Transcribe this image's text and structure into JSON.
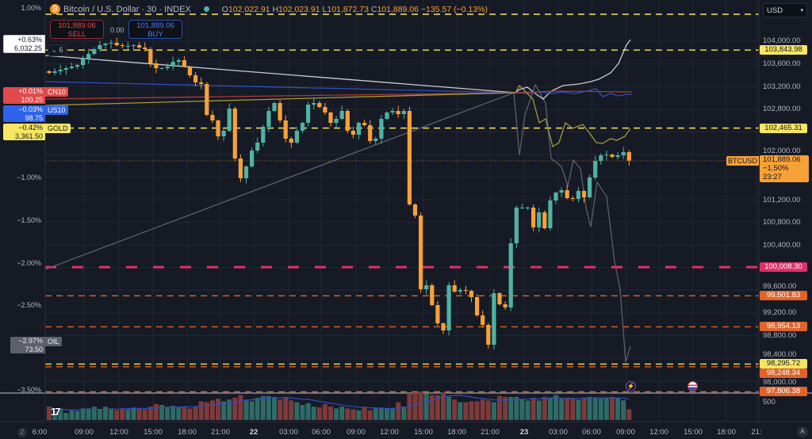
{
  "header": {
    "title": "Bitcoin / U.S. Dollar · 30 · INDEX",
    "ohlc": {
      "o_label": "O",
      "o": "102,022.91",
      "h_label": "H",
      "h": "102,023.91",
      "l_label": "L",
      "l": "101,872.73",
      "c_label": "C",
      "c": "101,889.06",
      "change": "−135.57 (−0.13%)"
    },
    "sell": {
      "price": "101,889.06",
      "label": "SELL"
    },
    "spread": "0.00",
    "buy": {
      "price": "101,889.06",
      "label": "BUY"
    },
    "collapse_count": "6"
  },
  "currency_select": "USD",
  "comparisons": [
    {
      "symbol": "",
      "pct": "+0.63%",
      "value": "6,032.25",
      "color": "#ffffff"
    },
    {
      "symbol": "CN10",
      "pct": "+0.01%",
      "value": "100.25",
      "color": "#e04a4a"
    },
    {
      "symbol": "US10",
      "pct": "−0.03%",
      "value": "98.75",
      "color": "#2e62e8"
    },
    {
      "symbol": "GOLD",
      "pct": "−0.42%",
      "value": "3,361.50",
      "color": "#f5e663"
    },
    {
      "symbol": "OIL",
      "pct": "−2.97%",
      "value": "73.50",
      "color": "#6b6e78"
    }
  ],
  "percent_axis": [
    "1.00%",
    "−1.00%",
    "−1.50%",
    "−2.00%",
    "−2.50%",
    "−3.50%"
  ],
  "price_axis": [
    "104,000.00",
    "103,600.00",
    "103,200.00",
    "102,800.00",
    "102,000.00",
    "101,200.00",
    "100,800.00",
    "100,400.00",
    "99,600.00",
    "99,200.00",
    "98,800.00",
    "98,400.00",
    "98,000.00"
  ],
  "price_lines": [
    {
      "price": "103,843.98",
      "color": "#f5e663",
      "style": "dashed"
    },
    {
      "price": "102,465.31",
      "color": "#f5e663",
      "style": "dashed"
    },
    {
      "price": "100,008.30",
      "color": "#e0306a",
      "style": "dashed-thick"
    },
    {
      "price": "99,501.83",
      "color": "#e0642a",
      "style": "dashed"
    },
    {
      "price": "98,954.13",
      "color": "#e0642a",
      "style": "dashed"
    },
    {
      "price": "98,295.72",
      "color": "#f5e663",
      "style": "dashed"
    },
    {
      "price": "98,248.34",
      "color": "#e0642a",
      "style": "dashed"
    },
    {
      "price": "97,806.38",
      "color": "#e0642a",
      "style": "dashed"
    }
  ],
  "last_price": {
    "symbol": "BTCUSD",
    "price": "101,889.06",
    "change": "−1.50%",
    "countdown": "23:27",
    "color": "#f7a136"
  },
  "volume_axis": "500",
  "time_axis": [
    "6:00",
    "09:00",
    "12:00",
    "15:00",
    "18:00",
    "21:00",
    "22",
    "03:00",
    "06:00",
    "09:00",
    "12:00",
    "15:00",
    "18:00",
    "21:00",
    "23",
    "03:00",
    "06:00",
    "09:00",
    "12:00",
    "15:00",
    "18:00",
    "21:"
  ],
  "footer": {
    "left_button": "Z",
    "right_button": "A"
  },
  "colors": {
    "up": "#4fb3a4",
    "down": "#f7a136",
    "vol_up": "#2e6b66",
    "vol_down": "#7e3a3a",
    "background": "#161a25"
  },
  "chart_data": {
    "type": "candlestick",
    "interval": "30",
    "closes": [
      103440,
      103468,
      103496,
      103524,
      103552,
      103580,
      103692,
      103776,
      103860,
      103930,
      103958,
      103972,
      103930,
      103916,
      103916,
      103930,
      103888,
      103860,
      103608,
      103524,
      103524,
      103552,
      103636,
      103664,
      103552,
      103398,
      103272,
      103244,
      102698,
      102600,
      102320,
      102418,
      102810,
      101928,
      101578,
      101788,
      102068,
      102208,
      102488,
      102768,
      102908,
      102600,
      102278,
      102208,
      102418,
      102558,
      102880,
      102908,
      102838,
      102740,
      102558,
      102628,
      102768,
      102418,
      102348,
      102558,
      102516,
      102236,
      102278,
      102628,
      102740,
      102768,
      102712,
      102768,
      101116,
      100920,
      99618,
      99688,
      99338,
      99016,
      98890,
      99688,
      99576,
      99604,
      99590,
      99478,
      99156,
      98988,
      98638,
      99548,
      99352,
      99296,
      100430,
      101060,
      101060,
      101060,
      100710,
      100976,
      100696,
      101186,
      101326,
      101368,
      101228,
      101214,
      101354,
      101242,
      101592,
      101886,
      101984,
      101998,
      101956,
      101984,
      102040,
      101889
    ],
    "volumes": [
      300,
      200,
      260,
      160,
      220,
      200,
      260,
      260,
      300,
      240,
      300,
      260,
      220,
      260,
      240,
      280,
      260,
      240,
      300,
      360,
      340,
      300,
      320,
      280,
      300,
      260,
      300,
      420,
      400,
      440,
      480,
      420,
      460,
      500,
      560,
      460,
      420,
      500,
      540,
      540,
      520,
      460,
      520,
      440,
      400,
      340,
      380,
      300,
      280,
      360,
      300,
      260,
      300,
      260,
      240,
      220,
      300,
      220,
      260,
      280,
      260,
      260,
      400,
      300,
      600,
      620,
      640,
      600,
      560,
      560,
      620,
      520,
      460,
      400,
      400,
      420,
      420,
      460,
      440,
      400,
      540,
      520,
      520,
      520,
      460,
      440,
      500,
      440,
      520,
      500,
      560,
      480,
      500,
      480,
      460,
      500,
      520,
      500,
      480,
      500,
      520,
      500,
      440,
      240
    ]
  }
}
